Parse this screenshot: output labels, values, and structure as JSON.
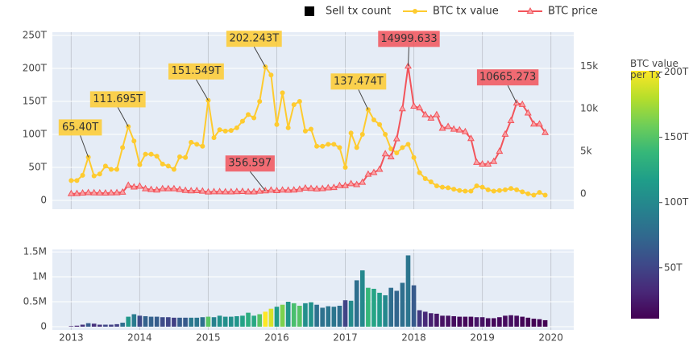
{
  "chart_data": {
    "type": "combo",
    "x": [
      "2013-01",
      "2013-02",
      "2013-03",
      "2013-04",
      "2013-05",
      "2013-06",
      "2013-07",
      "2013-08",
      "2013-09",
      "2013-10",
      "2013-11",
      "2013-12",
      "2014-01",
      "2014-02",
      "2014-03",
      "2014-04",
      "2014-05",
      "2014-06",
      "2014-07",
      "2014-08",
      "2014-09",
      "2014-10",
      "2014-11",
      "2014-12",
      "2015-01",
      "2015-02",
      "2015-03",
      "2015-04",
      "2015-05",
      "2015-06",
      "2015-07",
      "2015-08",
      "2015-09",
      "2015-10",
      "2015-11",
      "2015-12",
      "2016-01",
      "2016-02",
      "2016-03",
      "2016-04",
      "2016-05",
      "2016-06",
      "2016-07",
      "2016-08",
      "2016-09",
      "2016-10",
      "2016-11",
      "2016-12",
      "2017-01",
      "2017-02",
      "2017-03",
      "2017-04",
      "2017-05",
      "2017-06",
      "2017-07",
      "2017-08",
      "2017-09",
      "2017-10",
      "2017-11",
      "2017-12",
      "2018-01",
      "2018-02",
      "2018-03",
      "2018-04",
      "2018-05",
      "2018-06",
      "2018-07",
      "2018-08",
      "2018-09",
      "2018-10",
      "2018-11",
      "2018-12",
      "2019-01",
      "2019-02",
      "2019-03",
      "2019-04",
      "2019-05",
      "2019-06",
      "2019-07",
      "2019-08",
      "2019-09",
      "2019-10",
      "2019-11",
      "2019-12"
    ],
    "series": [
      {
        "name": "BTC tx value",
        "type": "line",
        "axis": "y",
        "color": "#fecb2f",
        "values": [
          30,
          30,
          38,
          65.4,
          37,
          40,
          52,
          47,
          47,
          80,
          111.695,
          90,
          54,
          70,
          70,
          67,
          55,
          52,
          47,
          66,
          65,
          88,
          85,
          82,
          151.549,
          95,
          107,
          105,
          106,
          110,
          120,
          130,
          125,
          150,
          202.243,
          190,
          115,
          163,
          110,
          145,
          150,
          105,
          108,
          82,
          82,
          85,
          85,
          80,
          50,
          102,
          80,
          100,
          137.474,
          122,
          115,
          100,
          78,
          72,
          80,
          85,
          65,
          42,
          33,
          28,
          22,
          20,
          19,
          17,
          15,
          14,
          14,
          22,
          20,
          16,
          14,
          15,
          16,
          18,
          16,
          13,
          10,
          8,
          12,
          8
        ]
      },
      {
        "name": "BTC price",
        "type": "line",
        "axis": "y2",
        "color": "#f2545b",
        "values": [
          20,
          30,
          90,
          140,
          120,
          100,
          90,
          110,
          130,
          200,
          1000,
          800,
          900,
          600,
          500,
          450,
          600,
          600,
          600,
          500,
          400,
          350,
          370,
          320,
          220,
          250,
          250,
          230,
          230,
          260,
          280,
          230,
          235,
          310,
          356.597,
          430,
          370,
          440,
          420,
          450,
          530,
          670,
          620,
          575,
          610,
          700,
          740,
          960,
          970,
          1190,
          1080,
          1350,
          2300,
          2500,
          2880,
          4700,
          4340,
          6470,
          10000,
          14999.633,
          10300,
          10100,
          9300,
          8900,
          9300,
          7700,
          7900,
          7600,
          7500,
          7300,
          6500,
          3700,
          3500,
          3500,
          3800,
          5000,
          7000,
          8600,
          10665.273,
          10500,
          9500,
          8200,
          8200,
          7200
        ]
      },
      {
        "name": "Sell tx count",
        "type": "bar",
        "axis": "y3",
        "color": "#000000",
        "values": [
          0.01,
          0.02,
          0.04,
          0.07,
          0.06,
          0.04,
          0.04,
          0.04,
          0.05,
          0.08,
          0.2,
          0.25,
          0.22,
          0.21,
          0.2,
          0.2,
          0.19,
          0.19,
          0.18,
          0.18,
          0.18,
          0.18,
          0.18,
          0.19,
          0.2,
          0.19,
          0.22,
          0.2,
          0.2,
          0.21,
          0.22,
          0.28,
          0.22,
          0.25,
          0.3,
          0.36,
          0.4,
          0.44,
          0.5,
          0.47,
          0.42,
          0.47,
          0.49,
          0.44,
          0.38,
          0.41,
          0.4,
          0.42,
          0.53,
          0.52,
          0.93,
          1.13,
          0.78,
          0.76,
          0.68,
          0.63,
          0.78,
          0.72,
          0.88,
          1.43,
          0.83,
          0.33,
          0.3,
          0.27,
          0.26,
          0.22,
          0.22,
          0.21,
          0.2,
          0.2,
          0.2,
          0.19,
          0.19,
          0.17,
          0.17,
          0.19,
          0.22,
          0.23,
          0.22,
          0.2,
          0.18,
          0.16,
          0.15,
          0.13
        ]
      }
    ],
    "xlim": [
      "2012-09",
      "2020-05"
    ],
    "xticks": [
      2013,
      2014,
      2015,
      2016,
      2017,
      2018,
      2019,
      2020
    ],
    "ylim": [
      -13.4,
      254.9
    ],
    "yticks": [
      0,
      {
        "value": 50,
        "label": "50T"
      },
      {
        "value": 100,
        "label": "100T"
      },
      {
        "value": 150,
        "label": "150T"
      },
      {
        "value": 200,
        "label": "200T"
      },
      {
        "value": 250,
        "label": "250T"
      }
    ],
    "y2lim": [
      -1800,
      19000
    ],
    "y2ticks": [
      0,
      {
        "value": 5000,
        "label": "5k"
      },
      {
        "value": 10000,
        "label": "10k"
      },
      {
        "value": 15000,
        "label": "15k"
      }
    ],
    "y3lim": [
      -0.065,
      1.55
    ],
    "y3ticks": [
      0,
      {
        "value": 0.5,
        "label": "0.5M"
      },
      {
        "value": 1,
        "label": "1M"
      },
      {
        "value": 1.5,
        "label": "1.5M"
      }
    ],
    "grid": true,
    "legend": "top",
    "colorbar": {
      "title": "BTC value per Tx",
      "colorscale": "viridis",
      "lim": [
        11,
        201
      ],
      "ticks": [
        {
          "value": 50,
          "label": "50T"
        },
        {
          "value": 100,
          "label": "100T"
        },
        {
          "value": 150,
          "label": "150T"
        },
        {
          "value": 200,
          "label": "200T"
        }
      ]
    },
    "annotations": [
      {
        "x": "2013-04",
        "series": "BTC tx value",
        "text": "65.40T"
      },
      {
        "x": "2013-11",
        "series": "BTC tx value",
        "text": "111.695T"
      },
      {
        "x": "2015-01",
        "series": "BTC tx value",
        "text": "151.549T"
      },
      {
        "x": "2015-11",
        "series": "BTC tx value",
        "text": "202.243T"
      },
      {
        "x": "2017-05",
        "series": "BTC tx value",
        "text": "137.474T"
      },
      {
        "x": "2015-11",
        "series": "BTC price",
        "text": "356.597"
      },
      {
        "x": "2017-12",
        "series": "BTC price",
        "text": "14999.633"
      },
      {
        "x": "2019-07",
        "series": "BTC price",
        "text": "10665.273"
      }
    ]
  }
}
